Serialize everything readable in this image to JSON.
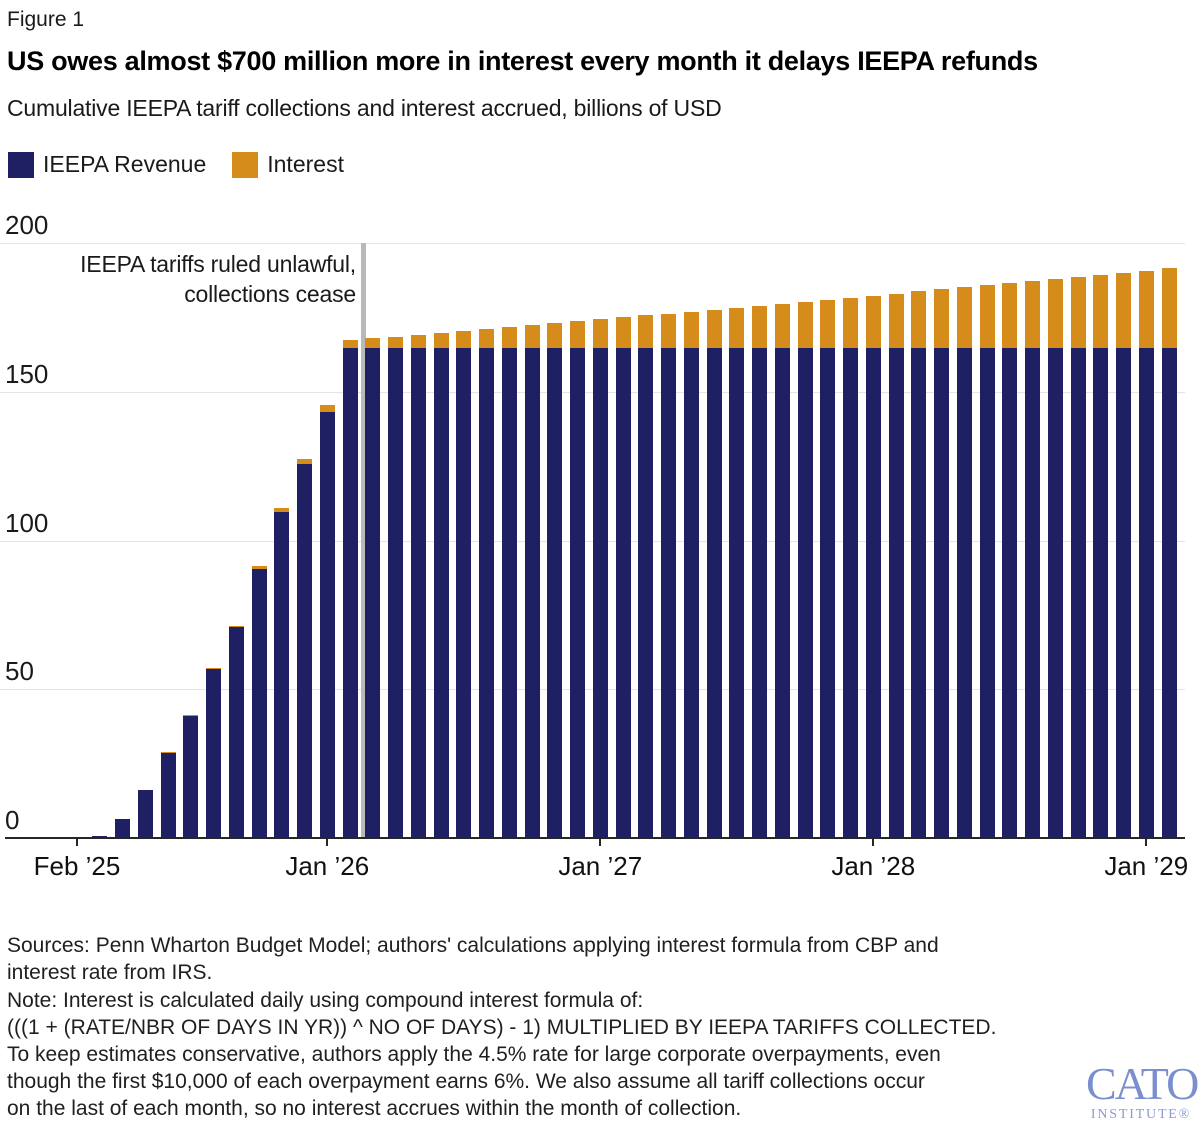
{
  "figure_label": "Figure 1",
  "title": "US owes almost $700 million more in interest every month it delays IEEPA refunds",
  "subtitle": "Cumulative IEEPA tariff collections and interest accrued, billions of USD",
  "legend": {
    "items": [
      {
        "label": "IEEPA Revenue",
        "color": "#1e2063"
      },
      {
        "label": "Interest",
        "color": "#d68c1a"
      }
    ]
  },
  "annotation": {
    "line1": "IEEPA tariffs ruled unlawful,",
    "line2": "collections cease",
    "line_color": "#b9b9b9"
  },
  "chart_data": {
    "type": "bar",
    "stacked": true,
    "title": "US owes almost $700 million more in interest every month it delays IEEPA refunds",
    "subtitle": "Cumulative IEEPA tariff collections and interest accrued, billions of USD",
    "ylabel": "billions of USD",
    "ylim": [
      0,
      200
    ],
    "yticks": [
      0,
      50,
      100,
      150,
      200
    ],
    "grid": true,
    "legend_position": "top-left",
    "categories": [
      "Feb ’25",
      "Mar ’25",
      "Apr ’25",
      "May ’25",
      "Jun ’25",
      "Jul ’25",
      "Aug ’25",
      "Sep ’25",
      "Oct ’25",
      "Nov ’25",
      "Dec ’25",
      "Jan ’26",
      "Feb ’26",
      "Mar ’26",
      "Apr ’26",
      "May ’26",
      "Jun ’26",
      "Jul ’26",
      "Aug ’26",
      "Sep ’26",
      "Oct ’26",
      "Nov ’26",
      "Dec ’26",
      "Jan ’27",
      "Feb ’27",
      "Mar ’27",
      "Apr ’27",
      "May ’27",
      "Jun ’27",
      "Jul ’27",
      "Aug ’27",
      "Sep ’27",
      "Oct ’27",
      "Nov ’27",
      "Dec ’27",
      "Jan ’28",
      "Feb ’28",
      "Mar ’28",
      "Apr ’28",
      "May ’28",
      "Jun ’28",
      "Jul ’28",
      "Aug ’28",
      "Sep ’28",
      "Oct ’28",
      "Nov ’28",
      "Dec ’28",
      "Jan ’29",
      "Feb ’29"
    ],
    "xticks": [
      {
        "i": 0,
        "label": "Feb ’25"
      },
      {
        "i": 11,
        "label": "Jan ’26"
      },
      {
        "i": 23,
        "label": "Jan ’27"
      },
      {
        "i": 35,
        "label": "Jan ’28"
      },
      {
        "i": 47,
        "label": "Jan ’29"
      }
    ],
    "event_line_between": [
      "Feb ’26",
      "Mar ’26"
    ],
    "series": [
      {
        "name": "IEEPA Revenue",
        "color": "#1e2063",
        "values": [
          0.1,
          0.8,
          6.4,
          16,
          28.7,
          41,
          56.7,
          70.8,
          90.3,
          109.5,
          125.6,
          143.3,
          164.8,
          164.8,
          164.8,
          164.8,
          164.8,
          164.8,
          164.8,
          164.8,
          164.8,
          164.8,
          164.8,
          164.8,
          164.8,
          164.8,
          164.8,
          164.8,
          164.8,
          164.8,
          164.8,
          164.8,
          164.8,
          164.8,
          164.8,
          164.8,
          164.8,
          164.8,
          164.8,
          164.8,
          164.8,
          164.8,
          164.8,
          164.8,
          164.8,
          164.8,
          164.8,
          164.8,
          164.8
        ]
      },
      {
        "name": "Interest",
        "color": "#d68c1a",
        "values": [
          0,
          0,
          0,
          0.05,
          0.1,
          0.2,
          0.3,
          0.6,
          1,
          1.3,
          1.7,
          2.1,
          2.5,
          3.13,
          3.76,
          4.39,
          5.02,
          5.66,
          6.3,
          6.94,
          7.59,
          8.23,
          8.88,
          9.54,
          10.19,
          10.85,
          11.51,
          12.17,
          12.84,
          13.5,
          14.17,
          14.85,
          15.52,
          16.2,
          16.88,
          17.56,
          18.24,
          18.93,
          19.62,
          20.31,
          21,
          21.7,
          22.4,
          23.1,
          23.81,
          24.51,
          25.22,
          25.93,
          26.65
        ]
      }
    ]
  },
  "footer": {
    "sources_lines": [
      "Sources: Penn Wharton Budget Model; authors' calculations applying interest formula from CBP and",
      "interest rate from IRS."
    ],
    "note_lines": [
      "Note: Interest is calculated daily using compound interest formula of:",
      "(((1 + (RATE/NBR OF DAYS IN YR)) ^ NO OF DAYS) - 1) MULTIPLIED BY IEEPA TARIFFS COLLECTED.",
      "To keep estimates conservative, authors apply the 4.5% rate for large corporate overpayments, even",
      "though the first $10,000 of each overpayment earns 6%. We also assume all tariff collections occur",
      "on the last of each month, so no interest accrues within the month of collection."
    ]
  },
  "logo": {
    "name": "CATO",
    "sub": "INSTITUTE®",
    "color": "#7b8ecd",
    "sub_color": "#8a9bd4"
  }
}
